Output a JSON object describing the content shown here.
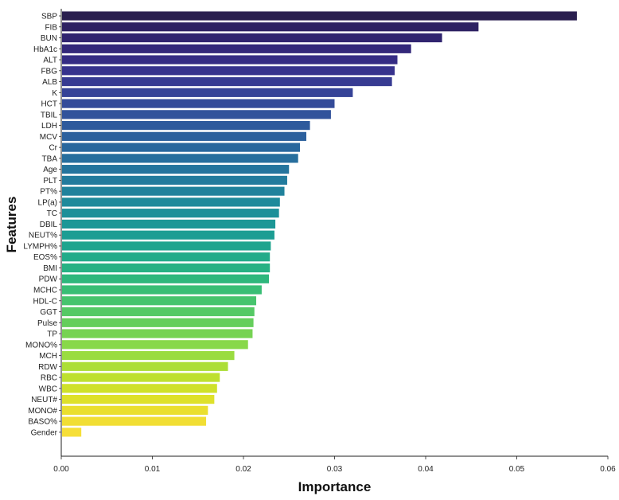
{
  "chart_data": {
    "type": "bar",
    "orientation": "horizontal",
    "xlabel": "Importance",
    "ylabel": "Features",
    "xlim": [
      0,
      0.06
    ],
    "xticks": [
      "0.00",
      "0.01",
      "0.02",
      "0.03",
      "0.04",
      "0.05",
      "0.06"
    ],
    "grid": false,
    "colormap": "viridis",
    "categories": [
      "SBP",
      "FIB",
      "BUN",
      "HbA1c",
      "ALT",
      "FBG",
      "ALB",
      "K",
      "HCT",
      "TBIL",
      "LDH",
      "MCV",
      "Cr",
      "TBA",
      "Age",
      "PLT",
      "PT%",
      "LP(a)",
      "TC",
      "DBIL",
      "NEUT%",
      "LYMPH%",
      "EOS%",
      "BMI",
      "PDW",
      "MCHC",
      "HDL-C",
      "GGT",
      "Pulse",
      "TP",
      "MONO%",
      "MCH",
      "RDW",
      "RBC",
      "WBC",
      "NEUT#",
      "MONO#",
      "BASO%",
      "Gender"
    ],
    "values": [
      0.0566,
      0.0458,
      0.0418,
      0.0384,
      0.0369,
      0.0366,
      0.0363,
      0.032,
      0.03,
      0.0296,
      0.0273,
      0.0269,
      0.0262,
      0.026,
      0.025,
      0.0248,
      0.0245,
      0.024,
      0.0239,
      0.0235,
      0.0234,
      0.023,
      0.0229,
      0.0229,
      0.0228,
      0.022,
      0.0214,
      0.0212,
      0.0211,
      0.021,
      0.0205,
      0.019,
      0.0183,
      0.0174,
      0.0171,
      0.0168,
      0.0161,
      0.0159,
      0.0022
    ],
    "colors": [
      "#2a1f4f",
      "#2d2162",
      "#30246f",
      "#33287a",
      "#352c84",
      "#37338d",
      "#373b92",
      "#364397",
      "#344b99",
      "#31529b",
      "#2e5a9c",
      "#2c609d",
      "#29679d",
      "#276e9d",
      "#24749d",
      "#227b9d",
      "#20829c",
      "#1e8a9b",
      "#1c9099",
      "#1c9796",
      "#1c9d93",
      "#1ea48e",
      "#22ab89",
      "#27b183",
      "#2eb77c",
      "#38be75",
      "#46c46d",
      "#55c965",
      "#65ce5c",
      "#76d353",
      "#88d84a",
      "#9adc40",
      "#acde37",
      "#bee02f",
      "#cfe12a",
      "#dee12a",
      "#eadf2e",
      "#f1de34",
      "#f6df38"
    ]
  }
}
